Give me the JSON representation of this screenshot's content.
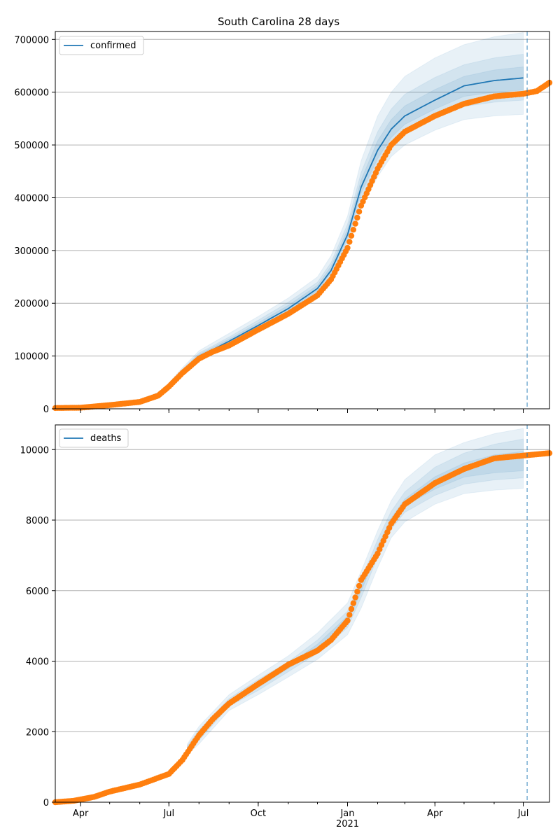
{
  "figure": {
    "title": "South Carolina 28 days"
  },
  "colors": {
    "model": "#1f77b4",
    "observed": "#ff7f0e",
    "grid": "#b0b0b0",
    "forecast_line": "#1f77b4"
  },
  "x_axis": {
    "ticks": [
      {
        "date": "2020-04-01",
        "label": "Apr"
      },
      {
        "date": "2020-07-01",
        "label": "Jul"
      },
      {
        "date": "2020-10-01",
        "label": "Oct"
      },
      {
        "date": "2021-01-01",
        "label": "Jan"
      },
      {
        "date": "2021-04-01",
        "label": "Apr"
      },
      {
        "date": "2021-07-01",
        "label": "Jul"
      }
    ],
    "year_label": "2021",
    "range": [
      "2020-03-06",
      "2021-07-28"
    ],
    "forecast_date": "2021-07-05"
  },
  "chart_data": [
    {
      "type": "line",
      "title": "South Carolina 28 days",
      "legend": {
        "entries": [
          "confirmed"
        ],
        "placement": "top-left"
      },
      "grid": "y",
      "ylim": [
        0,
        715000
      ],
      "yticks": [
        {
          "value": 0,
          "label": "0"
        },
        {
          "value": 100000,
          "label": "100000"
        },
        {
          "value": 200000,
          "label": "200000"
        },
        {
          "value": 300000,
          "label": "300000"
        },
        {
          "value": 400000,
          "label": "400000"
        },
        {
          "value": 500000,
          "label": "500000"
        },
        {
          "value": 600000,
          "label": "600000"
        },
        {
          "value": 700000,
          "label": "700000"
        }
      ],
      "model": {
        "name": "confirmed",
        "x": [
          "2020-03-06",
          "2020-04-01",
          "2020-05-01",
          "2020-06-01",
          "2020-06-20",
          "2020-07-01",
          "2020-07-15",
          "2020-08-01",
          "2020-08-15",
          "2020-09-01",
          "2020-10-01",
          "2020-11-01",
          "2020-12-01",
          "2020-12-15",
          "2021-01-01",
          "2021-01-15",
          "2021-02-01",
          "2021-02-15",
          "2021-03-01",
          "2021-04-01",
          "2021-05-01",
          "2021-06-01",
          "2021-07-01"
        ],
        "values": [
          2000,
          3000,
          8000,
          15000,
          28000,
          44000,
          70000,
          100000,
          112000,
          128000,
          158000,
          190000,
          228000,
          262000,
          330000,
          420000,
          490000,
          530000,
          555000,
          585000,
          612000,
          622000,
          627000
        ],
        "bands": [
          {
            "lower": [
              1800,
              2600,
              7000,
              13000,
              26000,
              40000,
              64000,
              92000,
              104000,
              119000,
              147000,
              176000,
              212000,
              245000,
              310000,
              380000,
              440000,
              478000,
              500000,
              528000,
              548000,
              555000,
              558000
            ],
            "upper": [
              2300,
              3600,
              9500,
              18000,
              31000,
              49000,
              78000,
              110000,
              125000,
              143000,
              175000,
              210000,
              250000,
              290000,
              365000,
              470000,
              555000,
              600000,
              630000,
              665000,
              690000,
              705000,
              713000
            ]
          },
          {
            "lower": [
              1900,
              2800,
              7500,
              14000,
              27000,
              42000,
              67000,
              96000,
              108000,
              123000,
              152000,
              182000,
              219000,
              252000,
              318000,
              398000,
              462000,
              500000,
              524000,
              552000,
              573000,
              581000,
              585000
            ],
            "upper": [
              2200,
              3300,
              8800,
              16500,
              30000,
              47000,
              75000,
              106000,
              119000,
              136000,
              168000,
              202000,
              240000,
              277000,
              350000,
              448000,
              525000,
              568000,
              596000,
              628000,
              652000,
              665000,
              672000
            ]
          },
          {
            "lower": [
              1950,
              2900,
              7800,
              14500,
              27500,
              43000,
              68500,
              98000,
              110000,
              125500,
              155000,
              186000,
              223500,
              257000,
              324000,
              408000,
              474000,
              514000,
              539000,
              568000,
              592000,
              600000,
              604000
            ],
            "upper": [
              2100,
              3150,
              8400,
              15800,
              29000,
              45500,
              72500,
              103000,
              116000,
              132000,
              163000,
              196000,
              234000,
              270000,
              340000,
              434000,
              508000,
              548000,
              574000,
              605000,
              630000,
              642000,
              648000
            ]
          }
        ]
      },
      "observed": {
        "x": [
          "2020-03-06",
          "2020-04-01",
          "2020-05-01",
          "2020-06-01",
          "2020-06-20",
          "2020-07-01",
          "2020-07-15",
          "2020-08-01",
          "2020-08-15",
          "2020-09-01",
          "2020-10-01",
          "2020-11-01",
          "2020-12-01",
          "2020-12-15",
          "2021-01-01",
          "2021-01-15",
          "2021-02-01",
          "2021-02-15",
          "2021-03-01",
          "2021-04-01",
          "2021-05-01",
          "2021-06-01",
          "2021-07-01",
          "2021-07-15",
          "2021-07-28"
        ],
        "values": [
          1500,
          2000,
          7000,
          13000,
          25000,
          42000,
          68000,
          95000,
          108000,
          120000,
          150000,
          180000,
          215000,
          245000,
          305000,
          385000,
          455000,
          500000,
          525000,
          555000,
          578000,
          592000,
          597000,
          602000,
          618000
        ]
      }
    },
    {
      "type": "line",
      "legend": {
        "entries": [
          "deaths"
        ],
        "placement": "top-left"
      },
      "grid": "y",
      "ylim": [
        0,
        10700
      ],
      "yticks": [
        {
          "value": 0,
          "label": "0"
        },
        {
          "value": 2000,
          "label": "2000"
        },
        {
          "value": 4000,
          "label": "4000"
        },
        {
          "value": 6000,
          "label": "6000"
        },
        {
          "value": 8000,
          "label": "8000"
        },
        {
          "value": 10000,
          "label": "10000"
        }
      ],
      "model": {
        "name": "deaths",
        "x": [],
        "values": [],
        "bands_x": [
          "2020-07-20",
          "2020-08-01",
          "2020-09-01",
          "2020-10-01",
          "2020-11-01",
          "2020-12-01",
          "2021-01-01",
          "2021-01-15",
          "2021-02-01",
          "2021-02-15",
          "2021-03-01",
          "2021-04-01",
          "2021-05-01",
          "2021-06-01",
          "2021-07-01"
        ],
        "bands": [
          {
            "lower": [
              1350,
              1650,
              2600,
              3050,
              3550,
              4050,
              4750,
              5500,
              6650,
              7500,
              7950,
              8450,
              8750,
              8850,
              8900
            ],
            "upper": [
              1650,
              2150,
              3050,
              3600,
              4150,
              4800,
              5650,
              6550,
              7700,
              8550,
              9150,
              9850,
              10200,
              10450,
              10600
            ]
          },
          {
            "lower": [
              1400,
              1750,
              2720,
              3170,
              3700,
              4220,
              4950,
              5800,
              6950,
              7750,
              8220,
              8700,
              9020,
              9140,
              9200
            ],
            "upper": [
              1600,
              2050,
              2940,
              3480,
              3980,
              4600,
              5420,
              6300,
              7450,
              8250,
              8800,
              9500,
              9900,
              10150,
              10300
            ]
          },
          {
            "lower": [
              1450,
              1830,
              2800,
              3260,
              3790,
              4330,
              5080,
              5980,
              7130,
              7920,
              8400,
              8880,
              9220,
              9340,
              9400
            ],
            "upper": [
              1550,
              1970,
              2870,
              3390,
              3890,
              4480,
              5280,
              6140,
              7260,
              8060,
              8600,
              9230,
              9620,
              9850,
              9950
            ]
          }
        ]
      },
      "observed": {
        "x": [
          "2020-03-06",
          "2020-03-25",
          "2020-04-15",
          "2020-05-01",
          "2020-06-01",
          "2020-07-01",
          "2020-07-15",
          "2020-08-01",
          "2020-08-15",
          "2020-09-01",
          "2020-10-01",
          "2020-11-01",
          "2020-12-01",
          "2020-12-15",
          "2021-01-01",
          "2021-01-15",
          "2021-02-01",
          "2021-02-15",
          "2021-03-01",
          "2021-04-01",
          "2021-05-01",
          "2021-06-01",
          "2021-07-01",
          "2021-07-28"
        ],
        "values": [
          0,
          40,
          150,
          300,
          500,
          800,
          1200,
          1900,
          2350,
          2800,
          3350,
          3900,
          4300,
          4600,
          5150,
          6300,
          7050,
          7900,
          8450,
          9050,
          9450,
          9750,
          9830,
          9900
        ]
      }
    }
  ]
}
